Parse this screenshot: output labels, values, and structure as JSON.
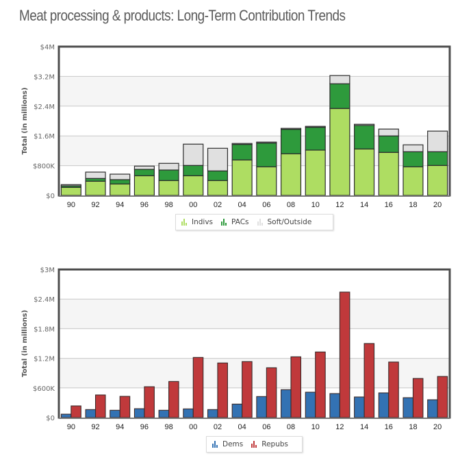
{
  "page": {
    "title": "Meat processing & products: Long-Term Contribution Trends"
  },
  "chart_data": [
    {
      "type": "bar",
      "stacked": true,
      "title": "",
      "xlabel": "",
      "ylabel": "Total (in millions)",
      "ylim": [
        0,
        4000000
      ],
      "yticks": [
        0,
        800000,
        1600000,
        2400000,
        3200000,
        4000000
      ],
      "ytick_labels": [
        "$0",
        "$800K",
        "$1.6M",
        "$2.4M",
        "$3.2M",
        "$4M"
      ],
      "categories": [
        "90",
        "92",
        "94",
        "96",
        "98",
        "00",
        "02",
        "04",
        "06",
        "08",
        "10",
        "12",
        "14",
        "16",
        "18",
        "20"
      ],
      "series": [
        {
          "name": "Indivs",
          "color": "#aedd62",
          "values": [
            216000,
            382000,
            308000,
            529000,
            400000,
            529000,
            400000,
            954000,
            769000,
            1120000,
            1218000,
            2338000,
            1249000,
            1157000,
            769000,
            806000
          ]
        },
        {
          "name": "PACs",
          "color": "#2e9a3c",
          "values": [
            42000,
            74000,
            116000,
            172000,
            283000,
            277000,
            259000,
            417000,
            639000,
            657000,
            614000,
            664000,
            633000,
            443000,
            406000,
            369000
          ]
        },
        {
          "name": "Soft/Outside",
          "color": "#e0e0e0",
          "values": [
            32000,
            171000,
            148000,
            87000,
            179000,
            572000,
            608000,
            26000,
            26000,
            26000,
            26000,
            221000,
            31000,
            184000,
            185000,
            554000
          ]
        }
      ],
      "legend": {
        "position": "bottom-center",
        "items": [
          "Indivs",
          "PACs",
          "Soft/Outside"
        ]
      },
      "grid": true
    },
    {
      "type": "bar",
      "stacked": false,
      "title": "",
      "xlabel": "",
      "ylabel": "Total (in millions)",
      "ylim": [
        0,
        3000000
      ],
      "yticks": [
        0,
        600000,
        1200000,
        1800000,
        2400000,
        3000000
      ],
      "ytick_labels": [
        "$0",
        "$600K",
        "$1.2M",
        "$1.8M",
        "$2.4M",
        "$3M"
      ],
      "categories": [
        "90",
        "92",
        "94",
        "96",
        "98",
        "00",
        "02",
        "04",
        "06",
        "08",
        "10",
        "12",
        "14",
        "16",
        "18",
        "20"
      ],
      "series": [
        {
          "name": "Dems",
          "color": "#3372b3",
          "values": [
            69000,
            162000,
            148000,
            180000,
            148000,
            176000,
            162000,
            273000,
            426000,
            565000,
            514000,
            486000,
            417000,
            500000,
            403000,
            361000
          ]
        },
        {
          "name": "Repubs",
          "color": "#c0393b",
          "values": [
            236000,
            458000,
            430000,
            625000,
            731000,
            1218000,
            1106000,
            1134000,
            1009000,
            1231000,
            1329000,
            2542000,
            1500000,
            1125000,
            792000,
            833000
          ]
        }
      ],
      "legend": {
        "position": "bottom-center",
        "items": [
          "Dems",
          "Repubs"
        ]
      },
      "grid": true
    }
  ]
}
